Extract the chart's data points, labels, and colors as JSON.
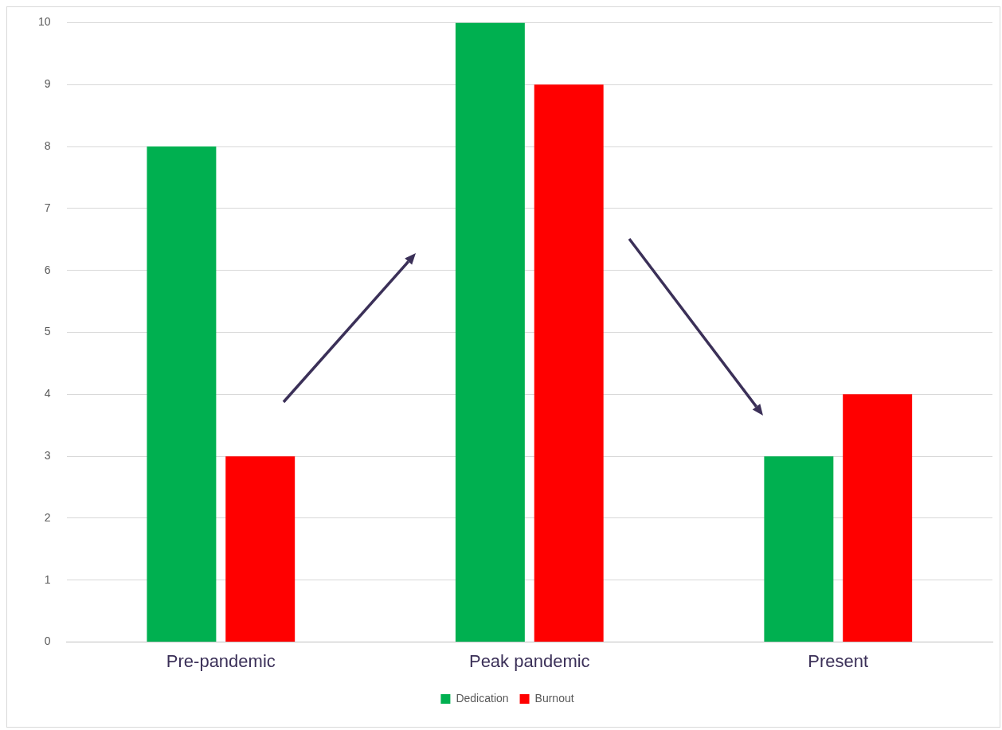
{
  "chart_data": {
    "type": "bar",
    "categories": [
      "Pre-pandemic",
      "Peak pandemic",
      "Present"
    ],
    "series": [
      {
        "name": "Dedication",
        "color": "#00b050",
        "values": [
          8,
          10,
          3
        ]
      },
      {
        "name": "Burnout",
        "color": "#ff0000",
        "values": [
          3,
          9,
          4
        ]
      }
    ],
    "ylim": [
      0,
      10
    ],
    "yticks": [
      0,
      1,
      2,
      3,
      4,
      5,
      6,
      7,
      8,
      9,
      10
    ],
    "grid": "y",
    "legend": "bottom"
  }
}
